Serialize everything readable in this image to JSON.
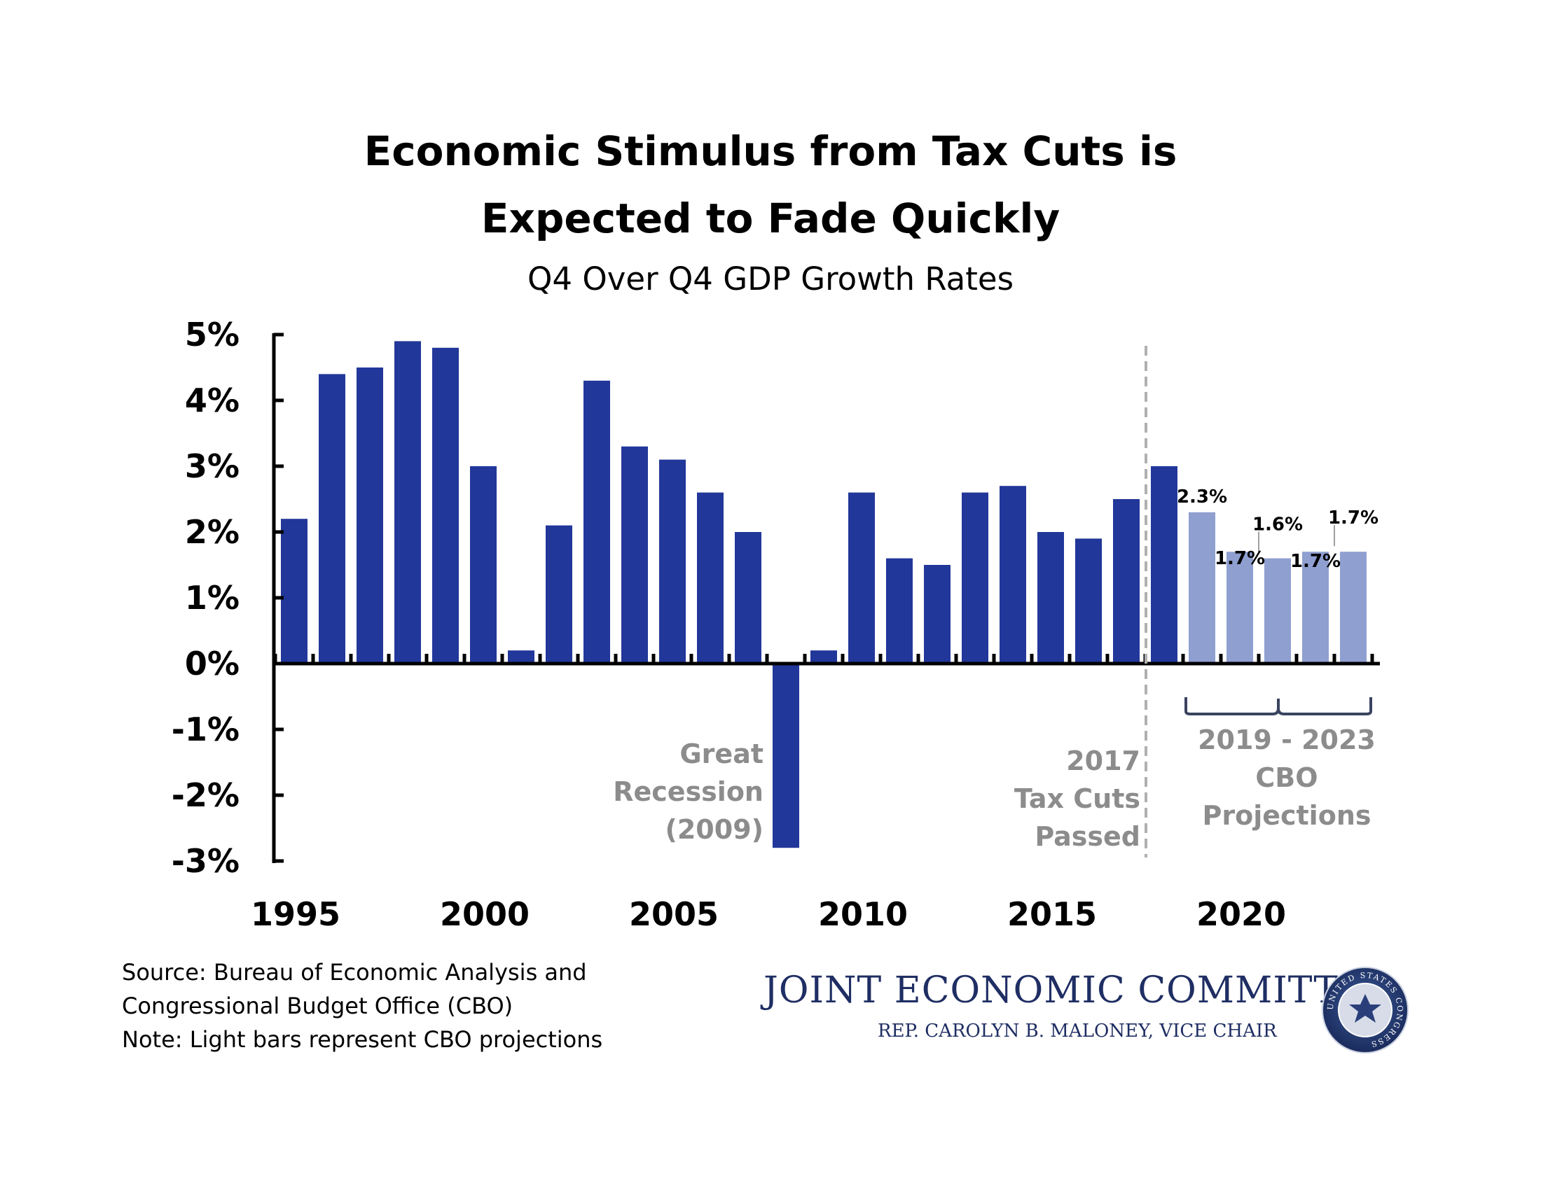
{
  "header": {
    "title_line1": "Economic Stimulus from Tax Cuts is",
    "title_line2": "Expected to Fade Quickly",
    "subtitle": "Q4 Over Q4 GDP Growth Rates"
  },
  "chart_data": {
    "type": "bar",
    "title": "Economic Stimulus from Tax Cuts is Expected to Fade Quickly",
    "subtitle": "Q4 Over Q4 GDP Growth Rates",
    "x": [
      1995,
      1996,
      1997,
      1998,
      1999,
      2000,
      2001,
      2002,
      2003,
      2004,
      2005,
      2006,
      2007,
      2008,
      2009,
      2010,
      2011,
      2012,
      2013,
      2014,
      2015,
      2016,
      2017,
      2018,
      2019,
      2020,
      2021,
      2022,
      2023
    ],
    "values": [
      2.2,
      4.4,
      4.5,
      4.9,
      4.8,
      3.0,
      0.2,
      2.1,
      4.3,
      3.3,
      3.1,
      2.6,
      2.0,
      -2.8,
      0.2,
      2.6,
      1.6,
      1.5,
      2.6,
      2.7,
      2.0,
      1.9,
      2.5,
      3.0,
      2.3,
      1.7,
      1.6,
      1.7,
      1.7
    ],
    "projection_from": 2019,
    "data_labels": {
      "2019": "2.3%",
      "2020": "1.7%",
      "2021": "1.6%",
      "2022": "1.7%",
      "2023": "1.7%"
    },
    "ylim": [
      -3,
      5
    ],
    "y_ticks": [
      "5%",
      "4%",
      "3%",
      "2%",
      "1%",
      "0%",
      "-1%",
      "-2%",
      "-3%"
    ],
    "x_ticks": [
      "1995",
      "2000",
      "2005",
      "2010",
      "2015",
      "2020"
    ],
    "colors": {
      "actual": "#22379a",
      "projection": "#8f9fd0",
      "annotation": "#8c8c8c"
    },
    "annotations": {
      "recession": [
        "Great",
        "Recession",
        "(2009)"
      ],
      "tax_cuts": [
        "2017",
        "Tax Cuts",
        "Passed"
      ],
      "projections": [
        "2019 - 2023",
        "CBO",
        "Projections"
      ]
    },
    "grid": false
  },
  "footer": {
    "source_line1": "Source: Bureau of Economic Analysis and",
    "source_line2": "Congressional Budget Office (CBO)",
    "note": "Note: Light bars represent CBO projections",
    "org_name": "JOINT ECONOMIC COMMITTEE",
    "org_sub": "REP. CAROLYN B. MALONEY, VICE CHAIR",
    "seal_text": "UNITED STATES CONGRESS"
  }
}
